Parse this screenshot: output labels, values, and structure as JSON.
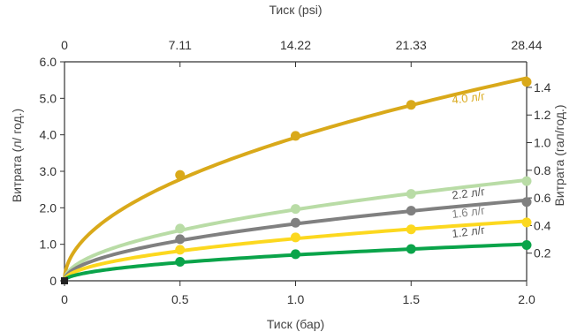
{
  "chart_data": {
    "type": "line",
    "xlabel_bottom": "Тиск (бар)",
    "xlabel_top": "Тиск (psi)",
    "ylabel_left": "Витрата (л/ год.)",
    "ylabel_right": "Витрата (гал/год.)",
    "xlim": [
      0,
      2.0
    ],
    "ylim_left": [
      0,
      6.0
    ],
    "ylim_right": [
      0,
      1.585
    ],
    "x_ticks_bottom": [
      "0",
      "0.5",
      "1.0",
      "1.5",
      "2.0"
    ],
    "x_ticks_top": [
      "0",
      "7.11",
      "14.22",
      "21.33",
      "28.44"
    ],
    "y_ticks_left": [
      "0",
      "1.0",
      "2.0",
      "3.0",
      "4.0",
      "5.0",
      "6.0"
    ],
    "y_ticks_right": [
      "0.2",
      "0.4",
      "0.6",
      "0.8",
      "1.0",
      "1.2",
      "1.4"
    ],
    "grid": false,
    "series": [
      {
        "name": "4.0 л/г",
        "color": "#d9a91a",
        "x": [
          0.5,
          1.0,
          1.5,
          2.0
        ],
        "y": [
          2.9,
          3.97,
          4.82,
          5.45
        ]
      },
      {
        "name": "2.2 л/г",
        "color": "#b9dca6",
        "x": [
          0.5,
          1.0,
          1.5,
          2.0
        ],
        "y": [
          1.43,
          1.97,
          2.38,
          2.73
        ]
      },
      {
        "name": "1.6 л/г",
        "color": "#808080",
        "x": [
          0.5,
          1.0,
          1.5,
          2.0
        ],
        "y": [
          1.14,
          1.59,
          1.92,
          2.16
        ]
      },
      {
        "name": "1.2 л/г",
        "color": "#fcd81f",
        "x": [
          0.5,
          1.0,
          1.5,
          2.0
        ],
        "y": [
          0.85,
          1.19,
          1.41,
          1.6
        ]
      },
      {
        "name": "",
        "color": "#0aa44a",
        "x": [
          0.5,
          1.0,
          1.5,
          2.0
        ],
        "y": [
          0.52,
          0.73,
          0.87,
          0.98
        ]
      }
    ]
  }
}
